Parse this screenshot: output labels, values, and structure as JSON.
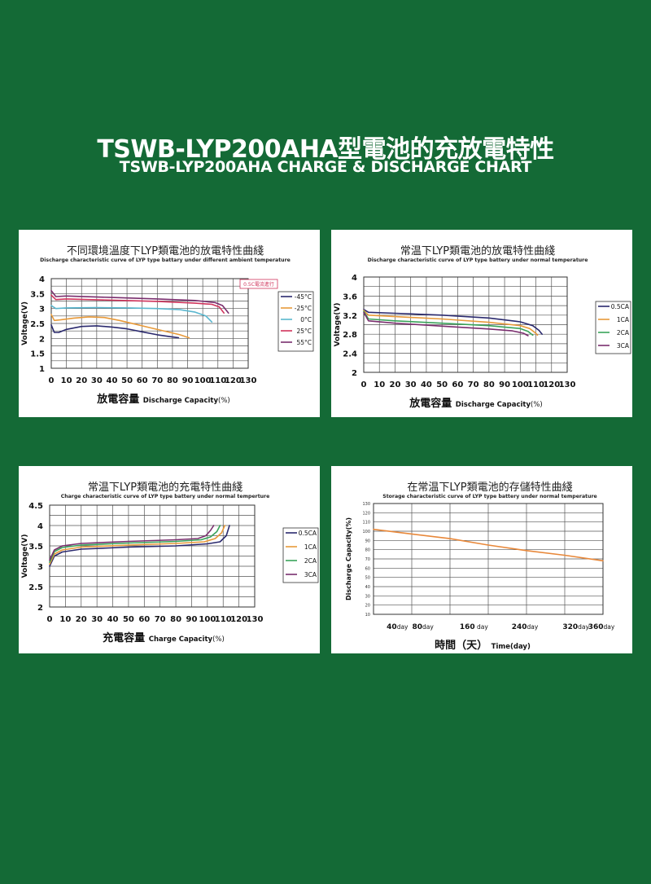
{
  "page": {
    "title": "TSWB-LYP200AHA型電池的充放電特性",
    "subtitle": "TSWB-LYP200AHA CHARGE & DISCHARGE CHART"
  },
  "chart_data": [
    {
      "id": "p1",
      "type": "line",
      "title": "不同環境溫度下LYP類電池的放電特性曲綫",
      "subtitle": "Discharge characteristic curve of LYP type battary under different ambient temperature",
      "xlabel_cn": "放電容量",
      "xlabel_en": "Discharge Capacity",
      "xlabel_unit": "(%)",
      "ylabel": "Voltage(V)",
      "xlim": [
        0,
        130
      ],
      "ylim": [
        1,
        4
      ],
      "xticks": [
        0,
        10,
        20,
        30,
        40,
        50,
        60,
        70,
        80,
        90,
        100,
        110,
        120,
        130
      ],
      "yticks": [
        1,
        1.5,
        2,
        2.5,
        3,
        3.5,
        4
      ],
      "annotation": "0.5C電流進行",
      "grid": true,
      "legend_position": "right",
      "series": [
        {
          "name": "-45°C",
          "color": "#2b2a6e",
          "points": [
            [
              0,
              2.45
            ],
            [
              2,
              2.2
            ],
            [
              5,
              2.2
            ],
            [
              10,
              2.3
            ],
            [
              20,
              2.4
            ],
            [
              30,
              2.42
            ],
            [
              40,
              2.38
            ],
            [
              50,
              2.32
            ],
            [
              60,
              2.22
            ],
            [
              70,
              2.12
            ],
            [
              78,
              2.06
            ],
            [
              84,
              2.02
            ]
          ]
        },
        {
          "name": "-25°C",
          "color": "#e89a3a",
          "points": [
            [
              0,
              2.8
            ],
            [
              2,
              2.6
            ],
            [
              6,
              2.62
            ],
            [
              15,
              2.68
            ],
            [
              25,
              2.72
            ],
            [
              35,
              2.7
            ],
            [
              45,
              2.6
            ],
            [
              55,
              2.48
            ],
            [
              65,
              2.36
            ],
            [
              75,
              2.24
            ],
            [
              85,
              2.12
            ],
            [
              91,
              2.02
            ]
          ]
        },
        {
          "name": "0°C",
          "color": "#5ab7cf",
          "points": [
            [
              0,
              3.1
            ],
            [
              3,
              3.0
            ],
            [
              10,
              3.02
            ],
            [
              30,
              3.03
            ],
            [
              50,
              3.02
            ],
            [
              70,
              3.0
            ],
            [
              85,
              2.96
            ],
            [
              95,
              2.88
            ],
            [
              102,
              2.75
            ],
            [
              106,
              2.55
            ]
          ]
        },
        {
          "name": "25°C",
          "color": "#d0345c",
          "points": [
            [
              0,
              3.45
            ],
            [
              3,
              3.3
            ],
            [
              10,
              3.32
            ],
            [
              40,
              3.28
            ],
            [
              70,
              3.24
            ],
            [
              95,
              3.18
            ],
            [
              106,
              3.14
            ],
            [
              111,
              3.05
            ],
            [
              114,
              2.85
            ]
          ]
        },
        {
          "name": "55°C",
          "color": "#7a2e6e",
          "points": [
            [
              0,
              3.6
            ],
            [
              3,
              3.4
            ],
            [
              10,
              3.42
            ],
            [
              40,
              3.37
            ],
            [
              70,
              3.32
            ],
            [
              95,
              3.27
            ],
            [
              108,
              3.2
            ],
            [
              113,
              3.1
            ],
            [
              117,
              2.85
            ]
          ]
        }
      ]
    },
    {
      "id": "p2",
      "type": "line",
      "title": "常温下LYP類電池的放電特性曲綫",
      "subtitle": "Discharge characteristic curve of LYP type battery under normal temperature",
      "xlabel_cn": "放電容量",
      "xlabel_en": "Discharge Capacity",
      "xlabel_unit": "(%)",
      "ylabel": "Voltage(V)",
      "xlim": [
        0,
        130
      ],
      "ylim": [
        2,
        4
      ],
      "xticks": [
        0,
        10,
        20,
        30,
        40,
        50,
        60,
        70,
        80,
        90,
        100,
        110,
        120,
        130
      ],
      "yticks": [
        2,
        2.4,
        2.8,
        3.2,
        3.6,
        4
      ],
      "grid": true,
      "legend_position": "right",
      "series": [
        {
          "name": "0.5CA",
          "color": "#2b2a6e",
          "points": [
            [
              0,
              3.32
            ],
            [
              3,
              3.26
            ],
            [
              20,
              3.24
            ],
            [
              50,
              3.2
            ],
            [
              80,
              3.14
            ],
            [
              100,
              3.06
            ],
            [
              108,
              2.98
            ],
            [
              112,
              2.88
            ],
            [
              114,
              2.8
            ]
          ]
        },
        {
          "name": "1CA",
          "color": "#e89a3a",
          "points": [
            [
              0,
              3.3
            ],
            [
              3,
              3.2
            ],
            [
              20,
              3.17
            ],
            [
              50,
              3.12
            ],
            [
              80,
              3.05
            ],
            [
              100,
              2.98
            ],
            [
              106,
              2.92
            ],
            [
              110,
              2.82
            ],
            [
              111,
              2.78
            ]
          ]
        },
        {
          "name": "2CA",
          "color": "#3aa35a",
          "points": [
            [
              0,
              3.28
            ],
            [
              3,
              3.12
            ],
            [
              20,
              3.08
            ],
            [
              50,
              3.03
            ],
            [
              80,
              2.98
            ],
            [
              100,
              2.92
            ],
            [
              105,
              2.86
            ],
            [
              108,
              2.78
            ]
          ]
        },
        {
          "name": "3CA",
          "color": "#7a2e6e",
          "points": [
            [
              0,
              3.26
            ],
            [
              3,
              3.08
            ],
            [
              20,
              3.03
            ],
            [
              50,
              2.97
            ],
            [
              80,
              2.91
            ],
            [
              95,
              2.87
            ],
            [
              102,
              2.82
            ],
            [
              105,
              2.77
            ]
          ]
        }
      ]
    },
    {
      "id": "p3",
      "type": "line",
      "title": "常温下LYP類電池的充電特性曲綫",
      "subtitle": "Charge characteristic curve of LYP type battery under normal temperture",
      "xlabel_cn": "充電容量",
      "xlabel_en": "Charge Capacity",
      "xlabel_unit": "(%)",
      "ylabel": "Voltage(V)",
      "xlim": [
        0,
        130
      ],
      "ylim": [
        2,
        4.5
      ],
      "xticks": [
        0,
        10,
        20,
        30,
        40,
        50,
        60,
        70,
        80,
        90,
        100,
        110,
        120,
        130
      ],
      "yticks": [
        2,
        2.5,
        3,
        3.5,
        4,
        4.5
      ],
      "grid": true,
      "legend_position": "right",
      "series": [
        {
          "name": "0.5CA",
          "color": "#2b2a6e",
          "points": [
            [
              0,
              3.0
            ],
            [
              3,
              3.25
            ],
            [
              8,
              3.35
            ],
            [
              20,
              3.42
            ],
            [
              50,
              3.47
            ],
            [
              80,
              3.5
            ],
            [
              100,
              3.55
            ],
            [
              108,
              3.6
            ],
            [
              112,
              3.75
            ],
            [
              114,
              4.0
            ]
          ]
        },
        {
          "name": "1CA",
          "color": "#e89a3a",
          "points": [
            [
              0,
              3.05
            ],
            [
              3,
              3.3
            ],
            [
              8,
              3.4
            ],
            [
              20,
              3.47
            ],
            [
              50,
              3.52
            ],
            [
              80,
              3.56
            ],
            [
              98,
              3.6
            ],
            [
              105,
              3.68
            ],
            [
              109,
              3.82
            ],
            [
              111,
              4.0
            ]
          ]
        },
        {
          "name": "2CA",
          "color": "#3aa35a",
          "points": [
            [
              0,
              3.1
            ],
            [
              3,
              3.36
            ],
            [
              8,
              3.46
            ],
            [
              20,
              3.52
            ],
            [
              50,
              3.57
            ],
            [
              80,
              3.61
            ],
            [
              96,
              3.65
            ],
            [
              102,
              3.72
            ],
            [
              106,
              3.85
            ],
            [
              108,
              4.0
            ]
          ]
        },
        {
          "name": "3CA",
          "color": "#7a2e6e",
          "points": [
            [
              0,
              3.15
            ],
            [
              3,
              3.4
            ],
            [
              8,
              3.5
            ],
            [
              20,
              3.56
            ],
            [
              50,
              3.61
            ],
            [
              80,
              3.65
            ],
            [
              94,
              3.68
            ],
            [
              99,
              3.75
            ],
            [
              102,
              3.88
            ],
            [
              104,
              4.0
            ]
          ]
        }
      ]
    },
    {
      "id": "p4",
      "type": "line",
      "title": "在常温下LYP類電池的存儲特性曲綫",
      "subtitle": "Storage characteristic curve of LYP type battery under normal temperature",
      "xlabel_cn": "時間（天）",
      "xlabel_en": "Time(day)",
      "ylabel": "Discharge Capacity(%)",
      "xlim": [
        0,
        360
      ],
      "ylim": [
        10,
        130
      ],
      "xtick_labels": [
        {
          "value": 40,
          "num": "40",
          "unit": "day"
        },
        {
          "value": 80,
          "num": "80",
          "unit": "day"
        },
        {
          "value": 160,
          "num": "160",
          "unit": " day"
        },
        {
          "value": 240,
          "num": "240",
          "unit": "day"
        },
        {
          "value": 320,
          "num": "320",
          "unit": "day"
        },
        {
          "value": 360,
          "num": "360",
          "unit": "day"
        }
      ],
      "yticks": [
        10,
        20,
        30,
        40,
        50,
        60,
        70,
        80,
        90,
        100,
        110,
        120,
        130
      ],
      "grid": true,
      "series": [
        {
          "name": "",
          "color": "#e8883a",
          "points": [
            [
              0,
              102
            ],
            [
              60,
              97
            ],
            [
              120,
              92
            ],
            [
              180,
              85
            ],
            [
              240,
              79
            ],
            [
              300,
              74
            ],
            [
              360,
              68
            ]
          ]
        }
      ]
    }
  ]
}
